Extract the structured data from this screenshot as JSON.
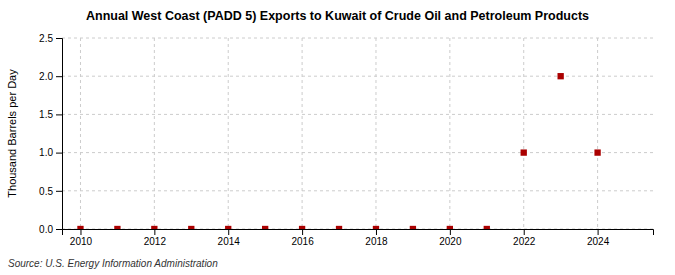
{
  "chart_data": {
    "type": "scatter",
    "title": "Annual West Coast (PADD 5) Exports to Kuwait of Crude Oil and Petroleum Products",
    "y_label": "Thousand Barrels per Day",
    "annotations": [
      "Source: U.S. Energy Information Administration"
    ],
    "x": [
      2010,
      2011,
      2012,
      2013,
      2014,
      2015,
      2016,
      2017,
      2018,
      2019,
      2020,
      2021,
      2022,
      2023,
      2024
    ],
    "values": [
      0.0,
      0.0,
      0.0,
      0.0,
      0.0,
      0.0,
      0.0,
      0.0,
      0.0,
      0.0,
      0.0,
      0.0,
      1.0,
      2.0,
      1.0
    ],
    "color": "#aa0000",
    "marker": "square",
    "xlim": [
      2009.5,
      2025.5
    ],
    "xticks": [
      2010,
      2012,
      2014,
      2016,
      2018,
      2020,
      2022,
      2024
    ],
    "ylim": [
      0,
      2.5
    ],
    "yticks": [
      {
        "value": 0,
        "label": "0.0"
      },
      0.5,
      {
        "value": 1,
        "label": "1.0"
      },
      1.5,
      {
        "value": 2,
        "label": "2.0"
      },
      2.5
    ],
    "grid": true
  }
}
